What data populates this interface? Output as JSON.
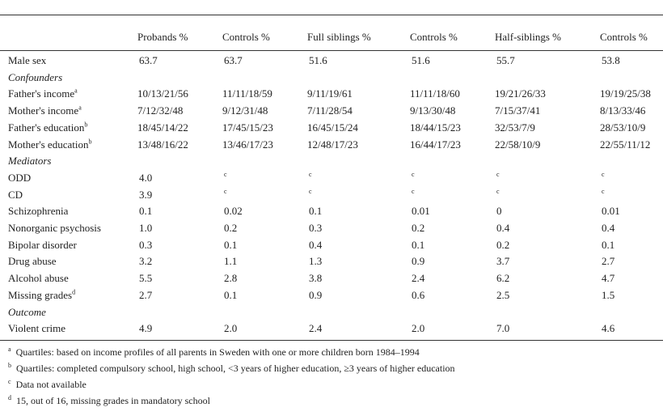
{
  "table": {
    "header": [
      "Probands %",
      "Controls %",
      "Full siblings %",
      "Controls %",
      "Half-siblings %",
      "Controls %"
    ],
    "rows": [
      {
        "label": "Male sex",
        "cells": [
          "63.7",
          "63.7",
          "51.6",
          "51.6",
          "55.7",
          "53.8"
        ]
      },
      {
        "section": "Confounders"
      },
      {
        "label": "Father's income",
        "sup": "a",
        "cells": [
          "10/13/21/56",
          "11/11/18/59",
          "9/11/19/61",
          "11/11/18/60",
          "19/21/26/33",
          "19/19/25/38"
        ]
      },
      {
        "label": "Mother's income",
        "sup": "a",
        "cells": [
          "7/12/32/48",
          "9/12/31/48",
          "7/11/28/54",
          "9/13/30/48",
          "7/15/37/41",
          "8/13/33/46"
        ]
      },
      {
        "label": "Father's education",
        "sup": "b",
        "cells": [
          "18/45/14/22",
          "17/45/15/23",
          "16/45/15/24",
          "18/44/15/23",
          "32/53/7/9",
          "28/53/10/9"
        ]
      },
      {
        "label": "Mother's education",
        "sup": "b",
        "cells": [
          "13/48/16/22",
          "13/46/17/23",
          "12/48/17/23",
          "16/44/17/23",
          "22/58/10/9",
          "22/55/11/12"
        ]
      },
      {
        "section": "Mediators"
      },
      {
        "label": "ODD",
        "cells": [
          "4.0",
          {
            "sup": "c"
          },
          {
            "sup": "c"
          },
          {
            "sup": "c"
          },
          {
            "sup": "c"
          },
          {
            "sup": "c"
          }
        ]
      },
      {
        "label": "CD",
        "cells": [
          "3.9",
          {
            "sup": "c"
          },
          {
            "sup": "c"
          },
          {
            "sup": "c"
          },
          {
            "sup": "c"
          },
          {
            "sup": "c"
          }
        ]
      },
      {
        "label": "Schizophrenia",
        "cells": [
          "0.1",
          "0.02",
          "0.1",
          "0.01",
          "0",
          "0.01"
        ]
      },
      {
        "label": "Nonorganic psychosis",
        "cells": [
          "1.0",
          "0.2",
          "0.3",
          "0.2",
          "0.4",
          "0.4"
        ]
      },
      {
        "label": "Bipolar disorder",
        "cells": [
          "0.3",
          "0.1",
          "0.4",
          "0.1",
          "0.2",
          "0.1"
        ]
      },
      {
        "label": "Drug abuse",
        "cells": [
          "3.2",
          "1.1",
          "1.3",
          "0.9",
          "3.7",
          "2.7"
        ]
      },
      {
        "label": "Alcohol abuse",
        "cells": [
          "5.5",
          "2.8",
          "3.8",
          "2.4",
          "6.2",
          "4.7"
        ]
      },
      {
        "label": "Missing grades",
        "sup": "d",
        "cells": [
          "2.7",
          "0.1",
          "0.9",
          "0.6",
          "2.5",
          "1.5"
        ]
      },
      {
        "section": "Outcome"
      },
      {
        "label": "Violent crime",
        "cells": [
          "4.9",
          "2.0",
          "2.4",
          "2.0",
          "7.0",
          "4.6"
        ]
      }
    ],
    "footnotes": [
      {
        "mark": "a",
        "text": "Quartiles: based on income profiles of all parents in Sweden with one or more children born 1984–1994"
      },
      {
        "mark": "b",
        "text": "Quartiles: completed compulsory school, high school, <3 years of higher education, ≥3 years of higher education"
      },
      {
        "mark": "c",
        "text": "Data not available"
      },
      {
        "mark": "d",
        "text": "15, out of 16, missing grades in mandatory school"
      }
    ]
  }
}
